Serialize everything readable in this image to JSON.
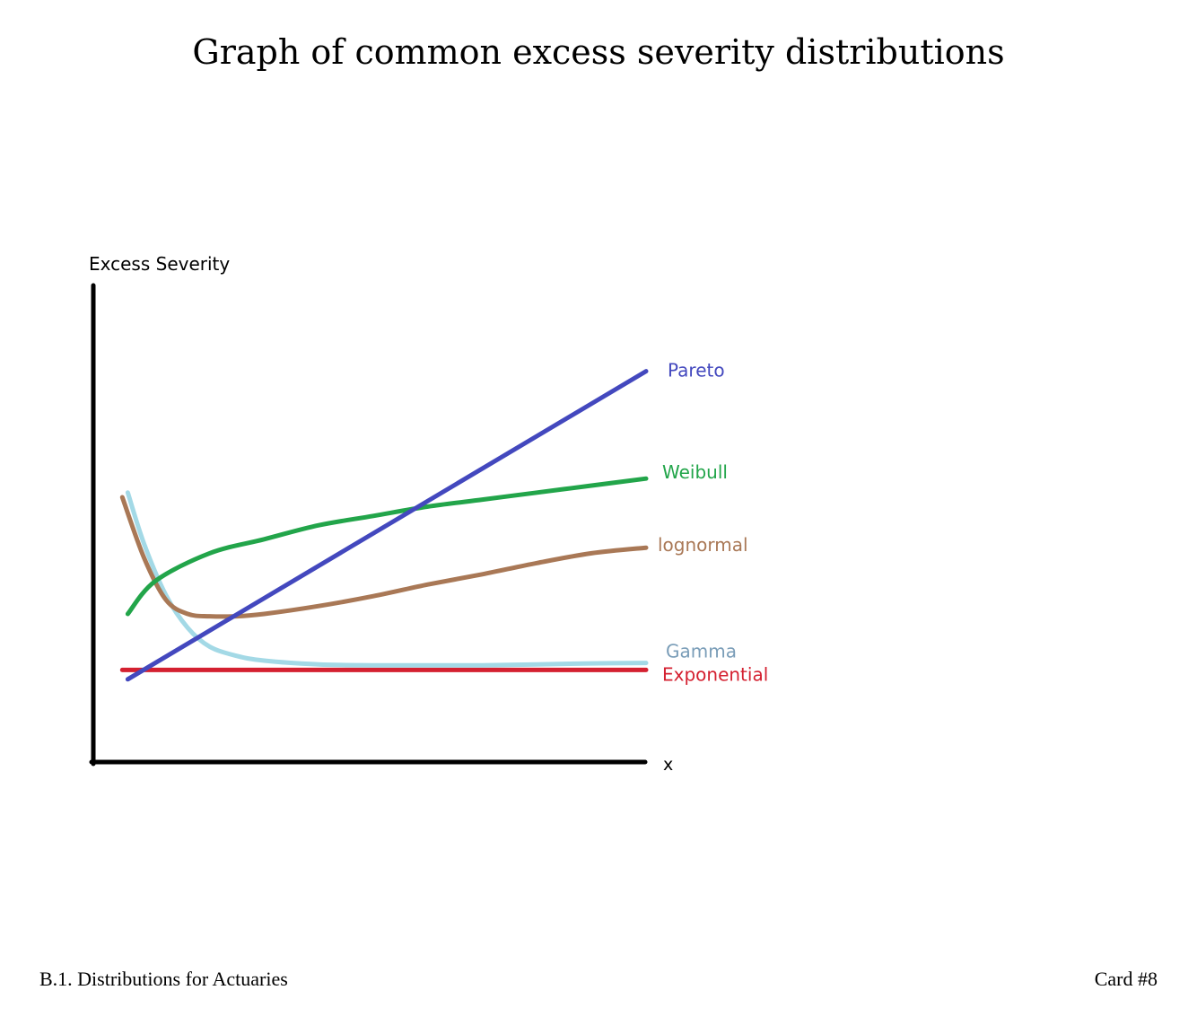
{
  "chart_data": {
    "type": "line",
    "title": "Graph of common excess severity distributions",
    "xlabel": "x",
    "ylabel": "Excess Severity",
    "xlim": [
      0,
      100
    ],
    "ylim": [
      0,
      100
    ],
    "grid": false,
    "legend": "inline-right",
    "series": [
      {
        "name": "Pareto",
        "color": "#4348BE",
        "x": [
          5,
          100
        ],
        "values": [
          16,
          82
        ]
      },
      {
        "name": "Weibull",
        "color": "#22A54A",
        "x": [
          5,
          10,
          20,
          30,
          40,
          50,
          60,
          70,
          80,
          90,
          100
        ],
        "values": [
          30,
          37,
          43,
          46,
          49,
          51,
          53,
          54.5,
          56,
          57.5,
          59
        ]
      },
      {
        "name": "lognormal",
        "color": "#A97856",
        "x": [
          4,
          8,
          12,
          16,
          20,
          25,
          30,
          40,
          50,
          60,
          70,
          80,
          90,
          100
        ],
        "values": [
          55,
          42,
          33,
          30,
          29.5,
          29.5,
          30,
          31.7,
          33.8,
          36.3,
          38.5,
          40.9,
          43,
          44.2
        ]
      },
      {
        "name": "Gamma",
        "color": "#A3D9E6",
        "x": [
          5,
          8,
          12,
          16,
          20,
          25,
          30,
          40,
          50,
          60,
          70,
          80,
          90,
          100
        ],
        "values": [
          56,
          45,
          34,
          27,
          23,
          21,
          20,
          19.2,
          19,
          19,
          19,
          19.2,
          19.4,
          19.5
        ]
      },
      {
        "name": "Exponential",
        "color": "#D42030",
        "x": [
          4,
          100
        ],
        "values": [
          18,
          18
        ]
      }
    ],
    "label_colors": {
      "Pareto": "#4348BE",
      "Weibull": "#22A54A",
      "lognormal": "#A97856",
      "Gamma": "#7A9DB8",
      "Exponential": "#D42030"
    }
  },
  "footer": {
    "left": "B.1. Distributions for Actuaries",
    "right": "Card #8"
  }
}
